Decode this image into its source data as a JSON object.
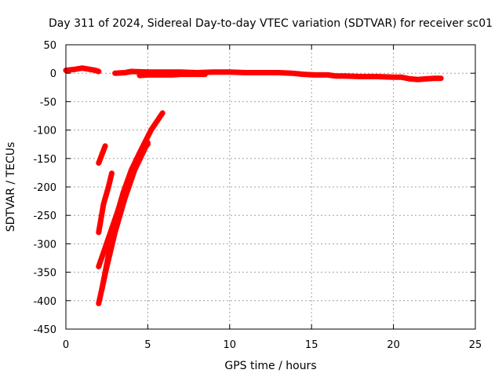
{
  "chart_data": {
    "type": "line",
    "title": "Day 311 of 2024, Sidereal Day-to-day VTEC variation (SDTVAR) for receiver sc01",
    "xlabel": "GPS time / hours",
    "ylabel": "SDTVAR / TECUs",
    "xlim": [
      0,
      25
    ],
    "ylim": [
      -450,
      50
    ],
    "xticks": [
      0,
      5,
      10,
      15,
      20,
      25
    ],
    "yticks": [
      50,
      0,
      -50,
      -100,
      -150,
      -200,
      -250,
      -300,
      -350,
      -400,
      -450
    ],
    "grid": true,
    "legend": "none",
    "color": "#ff0000",
    "series": [
      {
        "x": [
          0.0,
          0.3,
          0.6,
          1.0,
          1.4,
          1.8,
          2.0
        ],
        "y": [
          5,
          6,
          7,
          9,
          7,
          5,
          3
        ]
      },
      {
        "x": [
          3.0,
          3.6,
          4.0,
          5.0,
          6.0,
          7.0,
          8.0,
          9.0,
          10.0,
          11.0,
          12.0,
          13.0,
          13.8,
          14.5,
          15.2,
          16.0,
          16.5,
          17.0,
          18.0,
          19.0,
          20.0,
          20.5,
          21.0,
          21.5,
          22.0,
          22.5,
          22.9
        ],
        "y": [
          0,
          1,
          3,
          2,
          2,
          2,
          1,
          2,
          2,
          1,
          1,
          1,
          0,
          -2,
          -3,
          -3,
          -5,
          -5,
          -6,
          -6,
          -7,
          -7,
          -10,
          -11,
          -10,
          -9,
          -9
        ]
      },
      {
        "x": [
          4.5,
          5.0,
          5.5,
          6.0,
          6.5,
          7.0,
          7.5,
          8.0,
          8.5
        ],
        "y": [
          -4,
          -3,
          -3,
          -3,
          -3,
          -2,
          -2,
          -2,
          -2
        ]
      },
      {
        "x": [
          2.0,
          2.4
        ],
        "y": [
          -158,
          -128
        ]
      },
      {
        "x": [
          2.0,
          2.3,
          2.6,
          2.8
        ],
        "y": [
          -280,
          -230,
          -200,
          -176
        ]
      },
      {
        "x": [
          2.0,
          2.6,
          3.2,
          3.8,
          4.5,
          5.2,
          5.9
        ],
        "y": [
          -340,
          -290,
          -240,
          -190,
          -140,
          -100,
          -70
        ]
      },
      {
        "x": [
          2.0,
          2.5,
          3.0,
          3.6,
          4.2,
          5.0
        ],
        "y": [
          -405,
          -340,
          -280,
          -220,
          -170,
          -122
        ]
      },
      {
        "x": [
          2.2,
          2.6,
          3.0,
          3.5,
          4.0,
          4.5,
          5.0
        ],
        "y": [
          -380,
          -320,
          -260,
          -210,
          -170,
          -140,
          -125
        ]
      }
    ]
  }
}
